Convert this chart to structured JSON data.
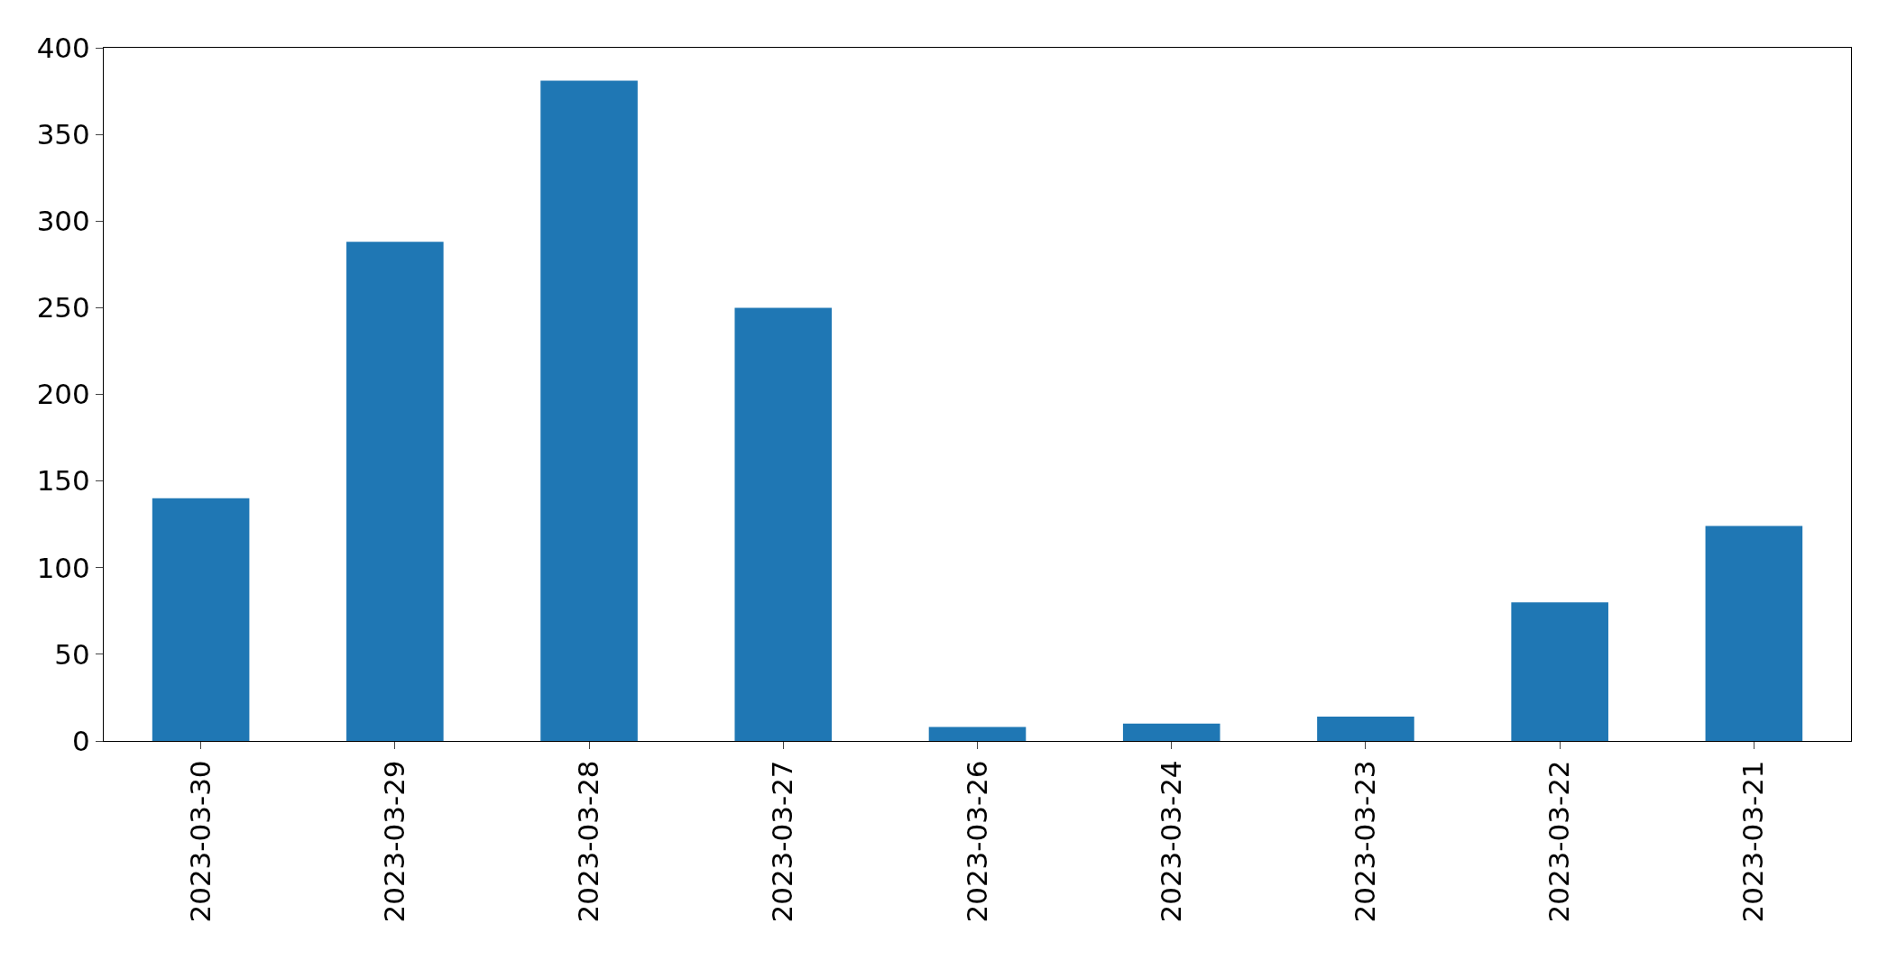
{
  "chart_data": {
    "type": "bar",
    "categories": [
      "2023-03-30",
      "2023-03-29",
      "2023-03-28",
      "2023-03-27",
      "2023-03-26",
      "2023-03-24",
      "2023-03-23",
      "2023-03-22",
      "2023-03-21"
    ],
    "values": [
      140,
      288,
      381,
      250,
      8,
      10,
      14,
      80,
      124
    ],
    "color": "#1f77b4",
    "ylim": [
      0,
      400
    ],
    "yticks": [
      0,
      50,
      100,
      150,
      200,
      250,
      300,
      350,
      400
    ],
    "grid": false
  }
}
